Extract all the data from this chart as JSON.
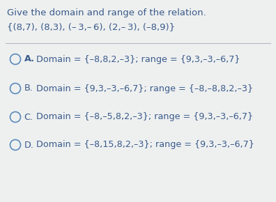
{
  "title": "Give the domain and range of the relation.",
  "relation": "{(8,7), (8,3), (– 3,– 6), (2,– 3), (–8,9)}",
  "bg_color": "#eef0f0",
  "text_color": "#3a5a8a",
  "divider_color": "#b0b8c0",
  "circle_color": "#5a8aba",
  "title_fontsize": 9.5,
  "relation_fontsize": 9.5,
  "option_fontsize": 9.2,
  "options": [
    {
      "label": "A.",
      "bold_label": true,
      "domain_text": "Domain = {–8,8,2,–3}; range = {9,3,–3,–6,7}"
    },
    {
      "label": "B.",
      "bold_label": false,
      "domain_text": "Domain = {9,3,–3,–6,7}; range = {–8,–8,8,2,–3}"
    },
    {
      "label": "C.",
      "bold_label": false,
      "domain_text": "Domain = {–8,–5,8,2,–3}; range = {9,3,–3,–6,7}"
    },
    {
      "label": "D.",
      "bold_label": false,
      "domain_text": "Domain = {–8,15,8,2,–3}; range = {9,3,–3,–6,7}"
    }
  ]
}
